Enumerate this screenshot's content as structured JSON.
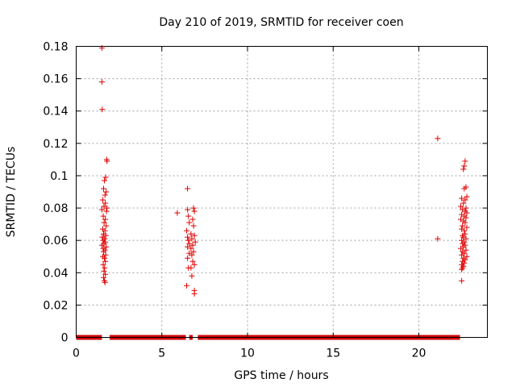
{
  "chart_data": {
    "type": "scatter",
    "title": "Day 210 of 2019, SRMTID for receiver coen",
    "xlabel": "GPS time / hours",
    "ylabel": "SRMTID / TECUs",
    "xlim": [
      0,
      24
    ],
    "ylim": [
      0,
      0.18
    ],
    "grid": true,
    "marker": "+",
    "color": "#e00000",
    "x_ticks": [
      0,
      5,
      10,
      15,
      20
    ],
    "x_tick_labels": [
      "0",
      "5",
      "10",
      "15",
      "20"
    ],
    "y_ticks": [
      0,
      0.02,
      0.04,
      0.06,
      0.08,
      0.1,
      0.12,
      0.14,
      0.16,
      0.18
    ],
    "y_tick_labels": [
      "0",
      "0.02",
      "0.04",
      "0.06",
      "0.08",
      "0.1",
      "0.12",
      "0.14",
      "0.16",
      "0.18"
    ],
    "zero_segments": [
      [
        0.0,
        1.5
      ],
      [
        1.95,
        6.4
      ],
      [
        6.6,
        6.8
      ],
      [
        7.1,
        22.4
      ]
    ],
    "points": [
      [
        1.5,
        0.179
      ],
      [
        1.5,
        0.158
      ],
      [
        1.52,
        0.141
      ],
      [
        1.78,
        0.11
      ],
      [
        1.8,
        0.109
      ],
      [
        1.72,
        0.099
      ],
      [
        1.65,
        0.097
      ],
      [
        1.6,
        0.092
      ],
      [
        1.75,
        0.09
      ],
      [
        1.68,
        0.088
      ],
      [
        1.55,
        0.085
      ],
      [
        1.7,
        0.083
      ],
      [
        1.62,
        0.081
      ],
      [
        1.8,
        0.08
      ],
      [
        1.5,
        0.079
      ],
      [
        1.77,
        0.078
      ],
      [
        1.58,
        0.075
      ],
      [
        1.7,
        0.073
      ],
      [
        1.63,
        0.071
      ],
      [
        1.75,
        0.069
      ],
      [
        1.55,
        0.067
      ],
      [
        1.68,
        0.066
      ],
      [
        1.6,
        0.064
      ],
      [
        1.73,
        0.063
      ],
      [
        1.52,
        0.062
      ],
      [
        1.66,
        0.061
      ],
      [
        1.57,
        0.06
      ],
      [
        1.7,
        0.059
      ],
      [
        1.62,
        0.058
      ],
      [
        1.5,
        0.057
      ],
      [
        1.75,
        0.056
      ],
      [
        1.58,
        0.055
      ],
      [
        1.68,
        0.054
      ],
      [
        1.6,
        0.053
      ],
      [
        1.72,
        0.051
      ],
      [
        1.55,
        0.05
      ],
      [
        1.65,
        0.049
      ],
      [
        1.7,
        0.047
      ],
      [
        1.58,
        0.045
      ],
      [
        1.66,
        0.043
      ],
      [
        1.62,
        0.041
      ],
      [
        1.7,
        0.039
      ],
      [
        1.6,
        0.037
      ],
      [
        1.65,
        0.035
      ],
      [
        1.68,
        0.034
      ],
      [
        5.9,
        0.077
      ],
      [
        6.5,
        0.092
      ],
      [
        6.5,
        0.079
      ],
      [
        6.85,
        0.08
      ],
      [
        6.9,
        0.078
      ],
      [
        6.55,
        0.075
      ],
      [
        6.8,
        0.073
      ],
      [
        6.6,
        0.071
      ],
      [
        6.85,
        0.069
      ],
      [
        6.45,
        0.066
      ],
      [
        6.7,
        0.064
      ],
      [
        6.9,
        0.063
      ],
      [
        6.5,
        0.062
      ],
      [
        6.75,
        0.061
      ],
      [
        6.55,
        0.06
      ],
      [
        6.95,
        0.059
      ],
      [
        6.6,
        0.058
      ],
      [
        6.8,
        0.057
      ],
      [
        6.5,
        0.056
      ],
      [
        6.7,
        0.055
      ],
      [
        6.85,
        0.053
      ],
      [
        6.6,
        0.052
      ],
      [
        6.75,
        0.051
      ],
      [
        6.5,
        0.049
      ],
      [
        6.8,
        0.047
      ],
      [
        6.9,
        0.045
      ],
      [
        6.7,
        0.043
      ],
      [
        6.55,
        0.043
      ],
      [
        6.75,
        0.038
      ],
      [
        6.45,
        0.032
      ],
      [
        6.9,
        0.029
      ],
      [
        6.9,
        0.027
      ],
      [
        21.1,
        0.123
      ],
      [
        21.1,
        0.061
      ],
      [
        22.7,
        0.109
      ],
      [
        22.65,
        0.106
      ],
      [
        22.6,
        0.104
      ],
      [
        22.75,
        0.093
      ],
      [
        22.65,
        0.092
      ],
      [
        22.8,
        0.087
      ],
      [
        22.5,
        0.086
      ],
      [
        22.7,
        0.085
      ],
      [
        22.6,
        0.083
      ],
      [
        22.45,
        0.081
      ],
      [
        22.75,
        0.08
      ],
      [
        22.55,
        0.079
      ],
      [
        22.7,
        0.078
      ],
      [
        22.8,
        0.077
      ],
      [
        22.5,
        0.076
      ],
      [
        22.65,
        0.075
      ],
      [
        22.75,
        0.074
      ],
      [
        22.45,
        0.073
      ],
      [
        22.6,
        0.072
      ],
      [
        22.7,
        0.071
      ],
      [
        22.55,
        0.069
      ],
      [
        22.8,
        0.068
      ],
      [
        22.5,
        0.067
      ],
      [
        22.65,
        0.066
      ],
      [
        22.7,
        0.064
      ],
      [
        22.55,
        0.063
      ],
      [
        22.6,
        0.062
      ],
      [
        22.75,
        0.061
      ],
      [
        22.5,
        0.06
      ],
      [
        22.65,
        0.059
      ],
      [
        22.55,
        0.058
      ],
      [
        22.7,
        0.057
      ],
      [
        22.6,
        0.056
      ],
      [
        22.45,
        0.055
      ],
      [
        22.75,
        0.054
      ],
      [
        22.55,
        0.053
      ],
      [
        22.65,
        0.052
      ],
      [
        22.5,
        0.051
      ],
      [
        22.8,
        0.05
      ],
      [
        22.6,
        0.049
      ],
      [
        22.7,
        0.048
      ],
      [
        22.55,
        0.047
      ],
      [
        22.65,
        0.046
      ],
      [
        22.5,
        0.045
      ],
      [
        22.6,
        0.044
      ],
      [
        22.55,
        0.043
      ],
      [
        22.5,
        0.042
      ],
      [
        22.5,
        0.035
      ]
    ]
  }
}
